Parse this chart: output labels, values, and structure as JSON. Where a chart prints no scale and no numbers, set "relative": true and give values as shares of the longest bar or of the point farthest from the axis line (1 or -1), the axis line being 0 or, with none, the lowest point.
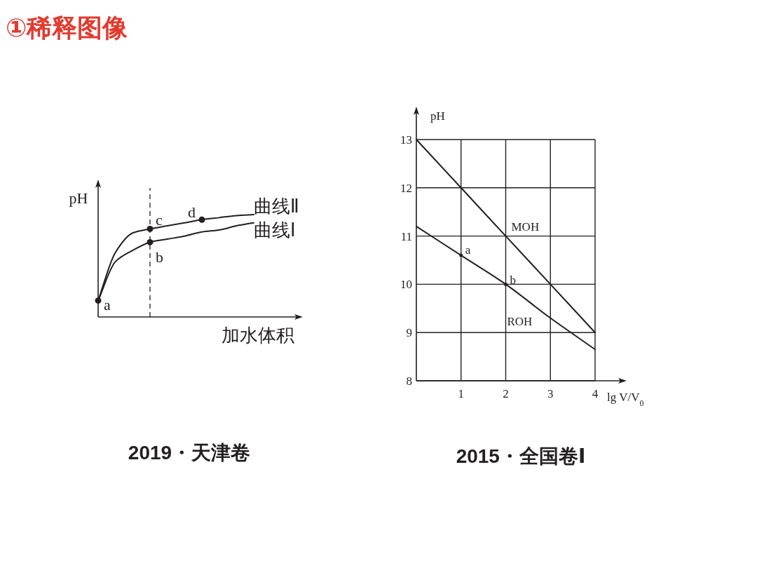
{
  "chart_data": [
    {
      "type": "line",
      "title": "①稀释图像",
      "subtitle": "2019・天津卷",
      "ylabel": "pH",
      "xlabel": "加水体积",
      "relative": true,
      "categories": [
        null,
        null,
        null,
        null,
        null,
        null,
        null,
        null,
        null,
        null
      ],
      "series": [
        {
          "name": "曲线Ⅱ",
          "color": "#231f20",
          "values": [
            0.16,
            0.63,
            0.82,
            0.86,
            0.89,
            0.92,
            0.95,
            0.97,
            0.99,
            1
          ]
        },
        {
          "name": "曲线Ⅰ",
          "color": "#231f20",
          "values": [
            0.16,
            0.54,
            0.65,
            0.73,
            0.76,
            0.79,
            0.83,
            0.85,
            0.89,
            0.92
          ]
        }
      ],
      "annotations": [
        "a",
        {
          "text": "b",
          "y": 0.73
        },
        {
          "text": "c",
          "y": 0.86
        },
        {
          "text": "d",
          "y": 0.95
        }
      ]
    },
    {
      "type": "line",
      "subtitle": "2015・全国卷Ⅰ",
      "ylabel": "pH",
      "xlabel": "lg V/V$_{0}$",
      "x": [
        0,
        1,
        2,
        3,
        4
      ],
      "xlim": [
        0,
        4
      ],
      "ylim": [
        8,
        13
      ],
      "xticks": [
        1,
        2,
        3,
        4
      ],
      "yticks": [
        8,
        9,
        10,
        11,
        12,
        13
      ],
      "grid": true,
      "series": [
        {
          "name": "MOH",
          "color": "#231f20",
          "values": [
            13,
            12,
            11,
            10,
            9
          ]
        },
        {
          "name": "ROH",
          "color": "#231f20",
          "values": [
            11.2,
            10.6,
            10,
            9.3,
            8.65
          ]
        }
      ],
      "annotations": [
        {
          "text": "a",
          "x": 1,
          "y": 10.6
        },
        {
          "text": "b",
          "x": 2,
          "y": 10
        }
      ]
    }
  ]
}
